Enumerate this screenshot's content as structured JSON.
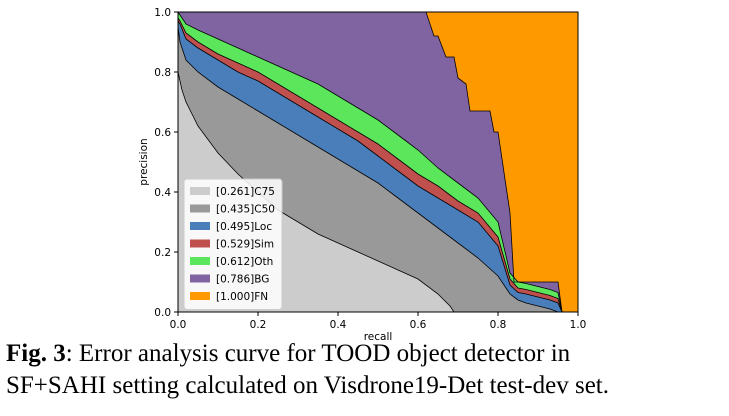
{
  "chart_data": {
    "type": "area",
    "xlabel": "recall",
    "ylabel": "precision",
    "xlim": [
      0.0,
      1.0
    ],
    "ylim": [
      0.0,
      1.0
    ],
    "x_ticks": [
      "0.0",
      "0.2",
      "0.4",
      "0.6",
      "0.8",
      "1.0"
    ],
    "y_ticks": [
      "0.0",
      "0.2",
      "0.4",
      "0.6",
      "0.8",
      "1.0"
    ],
    "legend_position": "lower-left",
    "series": [
      {
        "name": "[1.000]FN",
        "color": "#ff9900",
        "x": [
          0.0,
          1.0
        ],
        "y": [
          1.0,
          1.0
        ]
      },
      {
        "name": "[0.786]BG",
        "color": "#8064a2",
        "x": [
          0.0,
          0.62,
          0.64,
          0.65,
          0.67,
          0.69,
          0.7,
          0.72,
          0.73,
          0.78,
          0.79,
          0.8,
          0.83,
          0.84,
          0.95,
          0.96,
          1.0
        ],
        "y": [
          1.0,
          1.0,
          0.92,
          0.92,
          0.85,
          0.85,
          0.78,
          0.76,
          0.67,
          0.67,
          0.6,
          0.6,
          0.33,
          0.1,
          0.1,
          0.0,
          0.0
        ]
      },
      {
        "name": "[0.612]Oth",
        "color": "#5ce65c",
        "x": [
          0.0,
          0.005,
          0.02,
          0.05,
          0.1,
          0.15,
          0.2,
          0.25,
          0.3,
          0.35,
          0.4,
          0.45,
          0.5,
          0.55,
          0.6,
          0.65,
          0.7,
          0.75,
          0.8,
          0.83,
          0.85,
          0.87,
          0.9,
          0.93,
          0.95,
          0.96,
          1.0
        ],
        "y": [
          1.0,
          0.99,
          0.96,
          0.94,
          0.91,
          0.88,
          0.85,
          0.82,
          0.79,
          0.76,
          0.72,
          0.68,
          0.64,
          0.59,
          0.54,
          0.48,
          0.43,
          0.38,
          0.3,
          0.13,
          0.1,
          0.095,
          0.085,
          0.075,
          0.065,
          0.0,
          0.0
        ]
      },
      {
        "name": "[0.529]Sim",
        "color": "#c0504d",
        "x": [
          0.0,
          0.005,
          0.02,
          0.05,
          0.1,
          0.15,
          0.2,
          0.25,
          0.3,
          0.35,
          0.4,
          0.45,
          0.5,
          0.55,
          0.6,
          0.65,
          0.7,
          0.75,
          0.8,
          0.83,
          0.85,
          0.87,
          0.9,
          0.93,
          0.95,
          0.96,
          1.0
        ],
        "y": [
          0.98,
          0.97,
          0.93,
          0.9,
          0.86,
          0.83,
          0.8,
          0.76,
          0.72,
          0.68,
          0.64,
          0.6,
          0.56,
          0.51,
          0.46,
          0.42,
          0.37,
          0.33,
          0.25,
          0.11,
          0.08,
          0.075,
          0.065,
          0.055,
          0.045,
          0.0,
          0.0
        ]
      },
      {
        "name": "[0.495]Loc",
        "color": "#4a7ebb",
        "x": [
          0.0,
          0.005,
          0.02,
          0.05,
          0.1,
          0.15,
          0.2,
          0.25,
          0.3,
          0.35,
          0.4,
          0.45,
          0.5,
          0.55,
          0.6,
          0.65,
          0.7,
          0.75,
          0.8,
          0.83,
          0.85,
          0.87,
          0.9,
          0.93,
          0.95,
          0.96,
          1.0
        ],
        "y": [
          0.97,
          0.96,
          0.91,
          0.88,
          0.84,
          0.8,
          0.77,
          0.73,
          0.69,
          0.65,
          0.61,
          0.57,
          0.52,
          0.47,
          0.42,
          0.38,
          0.34,
          0.3,
          0.22,
          0.09,
          0.065,
          0.06,
          0.05,
          0.04,
          0.03,
          0.0,
          0.0
        ]
      },
      {
        "name": "[0.435]C50",
        "color": "#999999",
        "x": [
          0.0,
          0.005,
          0.02,
          0.05,
          0.1,
          0.15,
          0.2,
          0.25,
          0.3,
          0.35,
          0.4,
          0.45,
          0.5,
          0.55,
          0.6,
          0.65,
          0.7,
          0.75,
          0.8,
          0.83,
          0.85,
          0.87,
          0.9,
          0.93,
          0.95,
          1.0
        ],
        "y": [
          0.95,
          0.9,
          0.84,
          0.8,
          0.75,
          0.71,
          0.67,
          0.63,
          0.59,
          0.55,
          0.51,
          0.47,
          0.43,
          0.38,
          0.33,
          0.28,
          0.23,
          0.18,
          0.12,
          0.06,
          0.04,
          0.03,
          0.02,
          0.01,
          0.0,
          0.0
        ]
      },
      {
        "name": "[0.261]C75",
        "color": "#cccccc",
        "x": [
          0.0,
          0.01,
          0.02,
          0.05,
          0.1,
          0.15,
          0.2,
          0.25,
          0.3,
          0.35,
          0.4,
          0.45,
          0.5,
          0.55,
          0.6,
          0.65,
          0.68,
          0.69,
          0.7,
          1.0
        ],
        "y": [
          0.8,
          0.74,
          0.7,
          0.62,
          0.53,
          0.46,
          0.4,
          0.34,
          0.3,
          0.26,
          0.23,
          0.2,
          0.17,
          0.14,
          0.11,
          0.06,
          0.02,
          0.0,
          0.0,
          0.0
        ]
      }
    ]
  },
  "caption": {
    "label": "Fig. 3",
    "text": ":  Error analysis curve for TOOD object detector in",
    "line2": "SF+SAHI setting calculated on Visdrone19-Det test-dev set."
  }
}
